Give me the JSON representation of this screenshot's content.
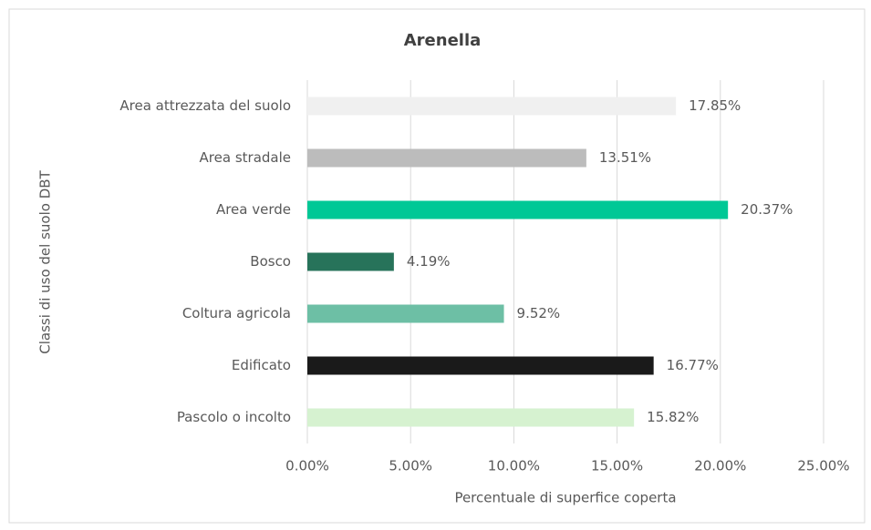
{
  "chart_data": {
    "type": "bar",
    "orientation": "horizontal",
    "title": "Arenella",
    "xlabel": "Percentuale di superfice coperta",
    "ylabel": "Classi di uso del suolo DBT",
    "categories": [
      "Area attrezzata del suolo",
      "Area stradale",
      "Area verde",
      "Bosco",
      "Coltura agricola",
      "Edificato",
      "Pascolo o incolto"
    ],
    "values": [
      17.85,
      13.51,
      20.37,
      4.19,
      9.52,
      16.77,
      15.82
    ],
    "value_labels": [
      "17.85%",
      "13.51%",
      "20.37%",
      "4.19%",
      "9.52%",
      "16.77%",
      "15.82%"
    ],
    "colors": [
      "#f0f0f0",
      "#bcbcbc",
      "#00c896",
      "#27735a",
      "#6dbfa5",
      "#1a1a1a",
      "#d6f2d0"
    ],
    "xlim": [
      0,
      25
    ],
    "xticks": [
      {
        "value": 0,
        "label": "0.00%"
      },
      {
        "value": 5,
        "label": "5.00%"
      },
      {
        "value": 10,
        "label": "10.00%"
      },
      {
        "value": 15,
        "label": "15.00%"
      },
      {
        "value": 20,
        "label": "20.00%"
      },
      {
        "value": 25,
        "label": "25.00%"
      }
    ],
    "grid": true
  }
}
